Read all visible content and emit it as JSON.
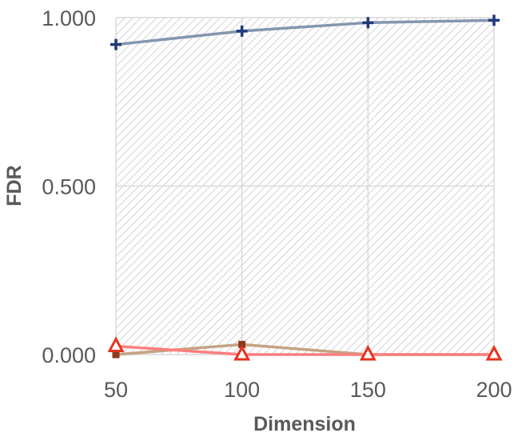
{
  "chart_data": {
    "type": "line",
    "title": "",
    "xlabel": "Dimension",
    "ylabel": "FDR",
    "x": [
      50,
      100,
      150,
      200
    ],
    "xlim": [
      50,
      200
    ],
    "ylim": [
      0,
      1
    ],
    "yticks": [
      "0.000",
      "0.500",
      "1.000"
    ],
    "xticks": [
      "50",
      "100",
      "150",
      "200"
    ],
    "grid": true,
    "series": [
      {
        "values": [
          0.92,
          0.96,
          0.985,
          0.992
        ],
        "color": "#8496b0",
        "marker": "plus",
        "marker_color": "#1f3a7a"
      },
      {
        "values": [
          0.0,
          0.03,
          0.0,
          0.0
        ],
        "color": "#c4a484",
        "marker": "square",
        "marker_color": "#8b3a1a"
      },
      {
        "values": [
          0.025,
          0.0,
          0.0,
          0.0
        ],
        "color": "#ff7f7f",
        "marker": "triangle",
        "marker_color": "#e8321e"
      }
    ]
  }
}
